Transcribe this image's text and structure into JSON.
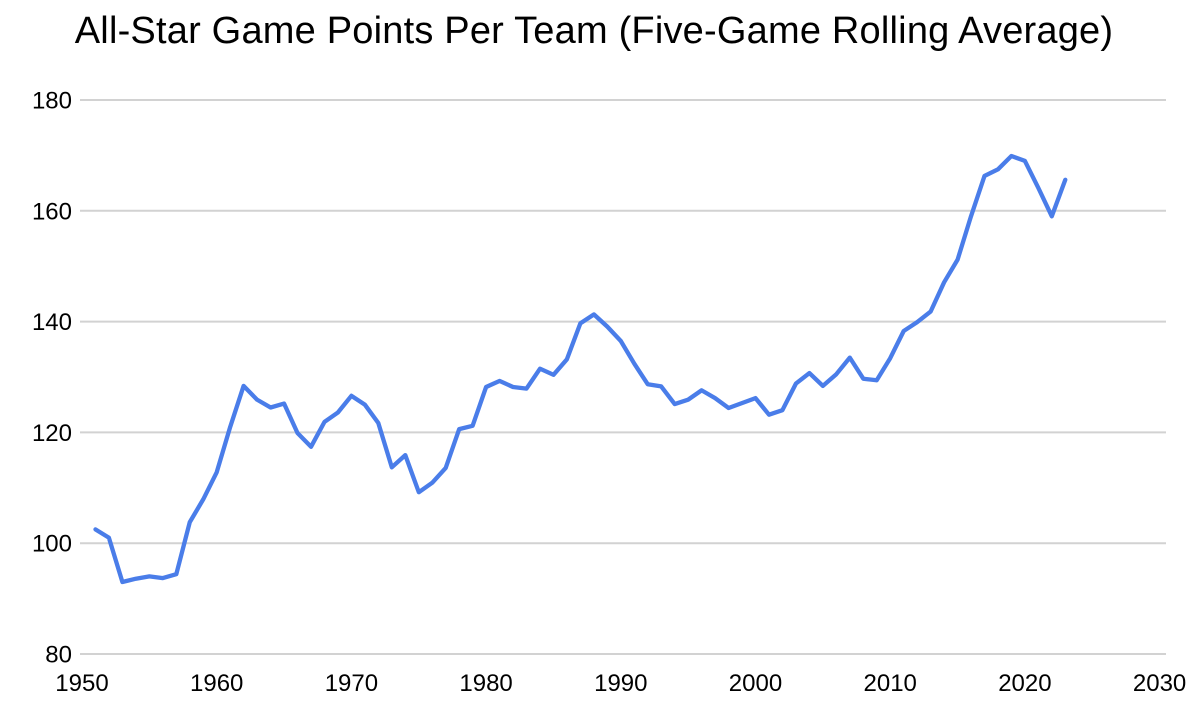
{
  "colors": {
    "background": "#ffffff",
    "title_text": "#000000",
    "tick_text": "#000000",
    "gridline": "#d2d2d2",
    "series_blue": "#4a7de9"
  },
  "chart_data": {
    "type": "line",
    "title": "All-Star Game Points Per Team (Five-Game Rolling Average)",
    "xlabel": "",
    "ylabel": "",
    "legend": "none",
    "grid": "horizontal-only",
    "x_axis": {
      "min": 1950,
      "max": 2030,
      "tick_step": 10,
      "tick_labels": [
        "1950",
        "1960",
        "1970",
        "1980",
        "1990",
        "2000",
        "2010",
        "2020",
        "2030"
      ]
    },
    "y_axis": {
      "min": 80,
      "max": 180,
      "tick_step": 20,
      "tick_labels": [
        "180",
        "160",
        "140",
        "120",
        "100",
        "80"
      ]
    },
    "series": [
      {
        "color": "#4a7de9",
        "points": [
          [
            1951,
            102.5
          ],
          [
            1952,
            101.0
          ],
          [
            1953,
            93.0
          ],
          [
            1954,
            93.6
          ],
          [
            1955,
            94.0
          ],
          [
            1956,
            93.7
          ],
          [
            1957,
            94.4
          ],
          [
            1958,
            103.8
          ],
          [
            1959,
            107.9
          ],
          [
            1960,
            112.8
          ],
          [
            1961,
            121.0
          ],
          [
            1962,
            128.4
          ],
          [
            1963,
            125.9
          ],
          [
            1964,
            124.5
          ],
          [
            1965,
            125.2
          ],
          [
            1966,
            119.9
          ],
          [
            1967,
            117.4
          ],
          [
            1968,
            121.9
          ],
          [
            1969,
            123.6
          ],
          [
            1970,
            126.6
          ],
          [
            1971,
            125.0
          ],
          [
            1972,
            121.7
          ],
          [
            1973,
            113.7
          ],
          [
            1974,
            115.9
          ],
          [
            1975,
            109.2
          ],
          [
            1976,
            110.9
          ],
          [
            1977,
            113.6
          ],
          [
            1978,
            120.6
          ],
          [
            1979,
            121.2
          ],
          [
            1980,
            128.2
          ],
          [
            1981,
            129.3
          ],
          [
            1982,
            128.2
          ],
          [
            1983,
            127.9
          ],
          [
            1984,
            131.5
          ],
          [
            1985,
            130.4
          ],
          [
            1986,
            133.2
          ],
          [
            1987,
            139.7
          ],
          [
            1988,
            141.3
          ],
          [
            1989,
            139.1
          ],
          [
            1990,
            136.5
          ],
          [
            1991,
            132.4
          ],
          [
            1992,
            128.7
          ],
          [
            1993,
            128.3
          ],
          [
            1994,
            125.1
          ],
          [
            1995,
            125.9
          ],
          [
            1996,
            127.6
          ],
          [
            1997,
            126.2
          ],
          [
            1998,
            124.4
          ],
          [
            2000,
            126.2
          ],
          [
            2001,
            123.2
          ],
          [
            2002,
            124.0
          ],
          [
            2003,
            128.8
          ],
          [
            2004,
            130.7
          ],
          [
            2005,
            128.4
          ],
          [
            2006,
            130.5
          ],
          [
            2007,
            133.5
          ],
          [
            2008,
            129.7
          ],
          [
            2009,
            129.4
          ],
          [
            2010,
            133.4
          ],
          [
            2011,
            138.3
          ],
          [
            2012,
            139.9
          ],
          [
            2013,
            141.8
          ],
          [
            2014,
            147.1
          ],
          [
            2015,
            151.2
          ],
          [
            2016,
            159.0
          ],
          [
            2017,
            166.3
          ],
          [
            2018,
            167.5
          ],
          [
            2019,
            169.9
          ],
          [
            2020,
            169.0
          ],
          [
            2021,
            164.1
          ],
          [
            2022,
            159.0
          ],
          [
            2023,
            165.6
          ]
        ]
      }
    ]
  }
}
